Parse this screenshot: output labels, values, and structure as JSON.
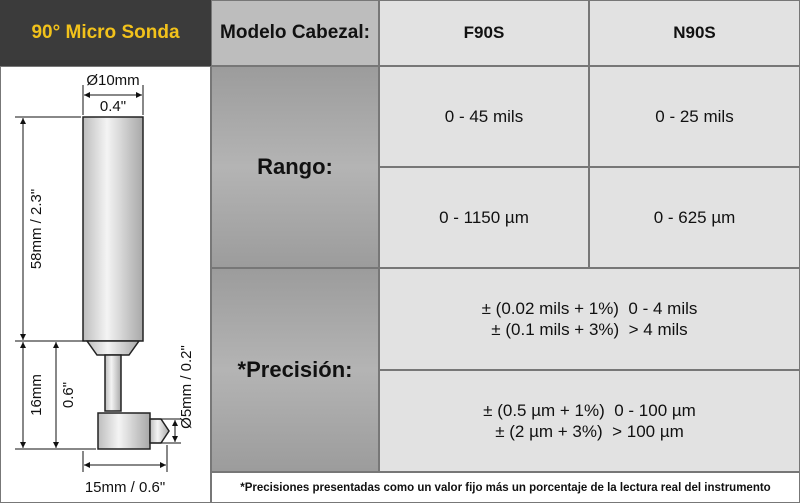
{
  "header": {
    "title": "90°  Micro Sonda",
    "label": "Modelo Cabezal:",
    "models": [
      "F90S",
      "N90S"
    ]
  },
  "drawing": {
    "diameter_mm": "Ø10mm",
    "diameter_in": "0.4\"",
    "length": "58mm / 2.3\"",
    "stem_mm": "16mm",
    "stem_in": "0.6\"",
    "tip": "Ø5mm / 0.2\"",
    "width": "15mm / 0.6\""
  },
  "range": {
    "label": "Rango:",
    "rows": [
      [
        "0 - 45 mils",
        "0 - 25 mils"
      ],
      [
        "0 - 1150 µm",
        "0 - 625 µm"
      ]
    ]
  },
  "precision": {
    "label": "*Precisión:",
    "rows": [
      [
        "± (0.02 mils + 1%)  0 - 4 mils",
        "± (0.1 mils + 3%)  > 4 mils"
      ],
      [
        "± (0.5 µm + 1%)  0 - 100 µm",
        "± (2 µm + 3%)  > 100 µm"
      ]
    ]
  },
  "footnote": "*Precisiones presentadas como un valor fijo más un porcentaje de la lectura real del instrumento"
}
